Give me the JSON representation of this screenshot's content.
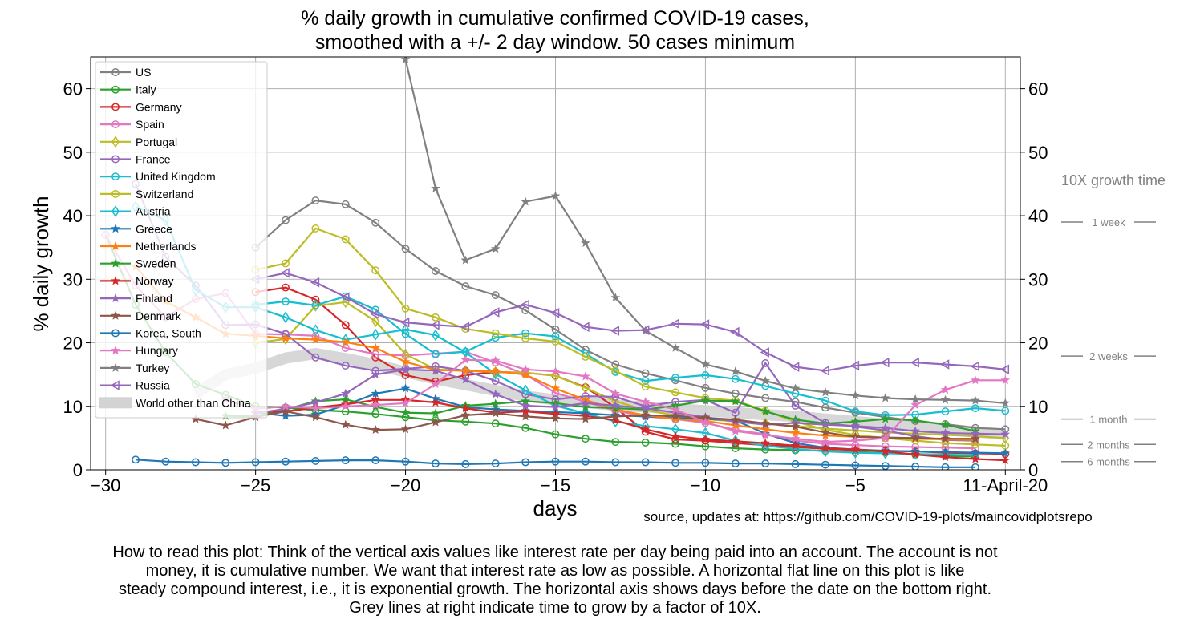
{
  "chart_data": {
    "type": "line",
    "title": "% daily growth in cumulative confirmed COVID-19 cases,",
    "subtitle": "smoothed with a +/- 2 day window. 50 cases minimum",
    "xlabel": "days",
    "ylabel": "% daily growth",
    "xlim": [
      -30.5,
      0.5
    ],
    "ylim": [
      0,
      65
    ],
    "x_ticks": [
      -30,
      -25,
      -20,
      -15,
      -10,
      -5,
      0
    ],
    "x_tick_labels": [
      "−30",
      "−25",
      "−20",
      "−15",
      "−10",
      "−5",
      "11-April-20"
    ],
    "y_ticks": [
      0,
      10,
      20,
      30,
      40,
      50,
      60
    ],
    "y_tick_labels": [
      "0",
      "10",
      "20",
      "30",
      "40",
      "50",
      "60"
    ],
    "grid": true,
    "legend_position": "top-left",
    "series": [
      {
        "name": "US",
        "color": "#808080",
        "marker": "circle",
        "start": -25,
        "values": [
          35,
          39.3,
          42.4,
          41.8,
          38.9,
          34.8,
          31.3,
          28.9,
          27.5,
          25.1,
          22.1,
          18.9,
          16.6,
          15.2,
          14.1,
          12.9,
          12.0,
          11.3,
          10.7,
          9.8,
          9.0,
          8.3,
          7.7,
          7.2,
          6.6,
          6.4
        ]
      },
      {
        "name": "Italy",
        "color": "#2ca02c",
        "marker": "circle",
        "start": -30,
        "values": [
          37,
          26,
          18.5,
          13.5,
          11.8,
          10.0,
          9.8,
          9.4,
          9.2,
          8.8,
          8.3,
          7.8,
          7.6,
          7.3,
          6.6,
          5.6,
          4.9,
          4.4,
          4.3,
          4.1,
          3.7,
          3.4,
          3.2,
          3.1,
          3.0,
          2.8,
          2.7,
          2.4,
          2.2,
          2.1
        ]
      },
      {
        "name": "Germany",
        "color": "#d62728",
        "marker": "circle",
        "start": -25,
        "values": [
          28.0,
          28.7,
          26.8,
          22.8,
          17.7,
          14.9,
          13.9,
          14.9,
          15.4,
          15.3,
          14.8,
          13.0,
          9.8,
          6.0,
          4.8,
          4.6,
          4.2,
          3.9,
          3.6,
          3.3,
          3.1,
          3.0,
          2.9,
          2.7,
          2.6,
          2.5
        ]
      },
      {
        "name": "Spain",
        "color": "#e377c2",
        "marker": "circle",
        "start": -30,
        "values": [
          37,
          29,
          24.0,
          26.9,
          27.8,
          21.4,
          21.3,
          21.1,
          19.2,
          18.2,
          18.0,
          18.3,
          18.6,
          16.9,
          15.0,
          12.1,
          10.7,
          9.3,
          8.4,
          8.0,
          7.4,
          6.3,
          5.6,
          4.6,
          4.1,
          3.9,
          3.7,
          3.6,
          3.5,
          3.4
        ]
      },
      {
        "name": "Portugal",
        "color": "#bcbd22",
        "marker": "diamond",
        "start": -25,
        "values": [
          20.0,
          20.6,
          25.8,
          26.4,
          23.4,
          18.2,
          15.8,
          15.6,
          15.4,
          15.3,
          14.8,
          12.9,
          10.8,
          9.4,
          8.6,
          8.0,
          7.6,
          7.3,
          6.9,
          6.5,
          6.2,
          5.9,
          5.7,
          5.5,
          5.3,
          5.0
        ]
      },
      {
        "name": "France",
        "color": "#9467bd",
        "marker": "circle",
        "start": -29,
        "values": [
          45,
          33.5,
          29.0,
          22.8,
          22.9,
          21.4,
          17.7,
          16.4,
          15.6,
          15.9,
          16.3,
          15.6,
          14.0,
          11.9,
          11.1,
          11.6,
          11.5,
          10.0,
          10.7,
          11.0,
          9.0,
          16.8,
          10.1,
          7.4,
          6.8,
          6.2,
          5.3,
          4.7,
          4.6
        ]
      },
      {
        "name": "United Kingdom",
        "color": "#17becf",
        "marker": "circle",
        "start": -25,
        "values": [
          26.0,
          26.5,
          25.9,
          27.3,
          25.2,
          21.4,
          18.2,
          18.6,
          20.8,
          21.5,
          21.0,
          18.3,
          15.4,
          14.0,
          14.5,
          14.9,
          14.3,
          13.2,
          12.0,
          10.9,
          9.2,
          8.6,
          8.7,
          9.2,
          9.7,
          9.3
        ]
      },
      {
        "name": "Switzerland",
        "color": "#bcbd22",
        "marker": "circle",
        "start": -25,
        "values": [
          31.5,
          32.5,
          38.0,
          36.3,
          31.4,
          25.4,
          24.0,
          22.2,
          21.5,
          20.7,
          20.2,
          17.8,
          15.6,
          13.1,
          12.2,
          11.3,
          10.9,
          9.3,
          7.6,
          6.3,
          5.5,
          5.0,
          4.6,
          4.2,
          4.0,
          3.8
        ]
      },
      {
        "name": "Austria",
        "color": "#17becf",
        "marker": "diamond",
        "start": -29,
        "values": [
          41.4,
          39.3,
          28.3,
          25.6,
          25.6,
          24.0,
          22.0,
          20.5,
          21.3,
          22.1,
          21.2,
          18.5,
          15.1,
          12.5,
          10.1,
          8.9,
          7.6,
          6.9,
          6.4,
          5.8,
          4.6,
          3.8,
          3.3,
          2.9,
          2.7,
          2.6,
          2.5,
          2.4,
          2.3
        ]
      },
      {
        "name": "Greece",
        "color": "#1f77b4",
        "marker": "star",
        "start": -25,
        "values": [
          9.0,
          8.5,
          8.7,
          10.2,
          12.0,
          12.8,
          11.2,
          9.9,
          9.5,
          9.3,
          9.1,
          8.9,
          8.6,
          8.4,
          8.2,
          8.0,
          7.8,
          5.7,
          4.2,
          3.5,
          3.2,
          3.0,
          2.9,
          2.8,
          2.7,
          2.6
        ]
      },
      {
        "name": "Netherlands",
        "color": "#ff7f0e",
        "marker": "star",
        "start": -29,
        "values": [
          32.0,
          26.5,
          24.0,
          21.4,
          21.1,
          20.7,
          20.5,
          20.1,
          19.2,
          17.0,
          15.7,
          15.6,
          15.5,
          15.0,
          12.8,
          11.0,
          9.5,
          8.6,
          8.0,
          7.7,
          7.0,
          6.4,
          5.8,
          5.4,
          5.2,
          5.0,
          4.9,
          4.8,
          4.7
        ]
      },
      {
        "name": "Sweden",
        "color": "#2ca02c",
        "marker": "star",
        "start": -26,
        "values": [
          8.5,
          8.4,
          9.5,
          10.8,
          11.1,
          9.9,
          9.0,
          8.9,
          10.1,
          10.4,
          10.8,
          10.5,
          9.9,
          9.7,
          9.5,
          10.1,
          10.9,
          10.8,
          9.2,
          7.9,
          7.3,
          7.6,
          8.0,
          7.8,
          7.1,
          6.1
        ]
      },
      {
        "name": "Norway",
        "color": "#d62728",
        "marker": "star",
        "start": -25,
        "values": [
          9.1,
          9.2,
          9.8,
          10.3,
          11.0,
          11.0,
          10.6,
          9.7,
          9.0,
          9.2,
          8.8,
          8.5,
          7.8,
          6.4,
          5.3,
          4.8,
          4.5,
          4.2,
          3.8,
          3.4,
          3.2,
          2.9,
          2.4,
          2.0,
          1.7,
          1.5
        ]
      },
      {
        "name": "Finland",
        "color": "#9467bd",
        "marker": "star",
        "start": -25,
        "values": [
          8.9,
          9.6,
          10.6,
          12.0,
          15.0,
          15.8,
          15.6,
          14.2,
          11.9,
          10.1,
          9.9,
          10.5,
          10.1,
          9.7,
          9.0,
          8.3,
          7.6,
          7.1,
          7.4,
          7.1,
          6.9,
          6.6,
          6.1,
          5.8,
          5.7,
          5.6
        ]
      },
      {
        "name": "Denmark",
        "color": "#8c564b",
        "marker": "star",
        "start": -27,
        "values": [
          8.0,
          7.0,
          8.3,
          9.2,
          8.3,
          7.1,
          6.3,
          6.4,
          7.5,
          8.6,
          8.9,
          8.4,
          8.1,
          8.0,
          8.4,
          8.6,
          8.5,
          8.2,
          7.9,
          7.3,
          6.8,
          5.9,
          5.2,
          5.1,
          5.0,
          4.9,
          4.9
        ]
      },
      {
        "name": "Korea, South",
        "color": "#1f77b4",
        "marker": "circle",
        "start": -29,
        "values": [
          1.6,
          1.3,
          1.2,
          1.1,
          1.2,
          1.3,
          1.4,
          1.5,
          1.5,
          1.3,
          1.0,
          0.9,
          1.0,
          1.2,
          1.3,
          1.3,
          1.2,
          1.2,
          1.1,
          1.1,
          1.0,
          1.0,
          0.9,
          0.8,
          0.7,
          0.6,
          0.5,
          0.4,
          0.4
        ]
      },
      {
        "name": "Hungary",
        "color": "#e377c2",
        "marker": "star",
        "start": -26,
        "values": [
          11.0,
          9.6,
          10.0,
          9.7,
          10.0,
          10.2,
          10.5,
          13.5,
          17.3,
          17.2,
          15.8,
          15.5,
          14.7,
          12.0,
          10.7,
          9.5,
          7.5,
          6.1,
          5.5,
          4.9,
          4.4,
          4.6,
          5.0,
          10.2,
          12.6,
          14.1,
          14.1
        ]
      },
      {
        "name": "Turkey",
        "color": "#808080",
        "marker": "star",
        "start": -20,
        "values": [
          64.6,
          44.3,
          33.0,
          34.8,
          42.2,
          43.1,
          35.7,
          27.1,
          21.9,
          19.2,
          16.6,
          15.5,
          14.0,
          12.8,
          12.2,
          11.7,
          11.3,
          11.1,
          11.0,
          10.9,
          10.5
        ]
      },
      {
        "name": "Russia",
        "color": "#9467bd",
        "marker": "triangle-left",
        "start": -25,
        "values": [
          30.0,
          31.0,
          29.5,
          27.2,
          24.5,
          23.2,
          22.8,
          22.5,
          24.8,
          26.0,
          24.7,
          22.5,
          21.9,
          22.0,
          23.0,
          22.9,
          21.7,
          18.5,
          16.2,
          15.6,
          16.4,
          16.9,
          16.9,
          16.6,
          16.3,
          15.8
        ]
      },
      {
        "name": "World other than China",
        "color": "#d3d3d3",
        "marker": "band",
        "start": -27,
        "values": [
          12.0,
          15.0,
          16.0,
          17.6,
          18.3,
          17.5,
          16.6,
          15.4,
          14.3,
          13.4,
          12.5,
          11.6,
          11.0,
          10.6,
          10.2,
          9.9,
          9.6,
          9.3,
          9.0,
          8.7,
          8.4,
          8.0,
          7.6,
          7.2,
          6.8,
          6.4,
          6.0,
          5.6
        ]
      }
    ],
    "right_guide_title": "10X growth time",
    "right_guides": [
      {
        "label": "1 week",
        "value": 39.0
      },
      {
        "label": "2 weeks",
        "value": 17.9
      },
      {
        "label": "1 month",
        "value": 8.0
      },
      {
        "label": "2 months",
        "value": 4.0
      },
      {
        "label": "6 months",
        "value": 1.3
      }
    ]
  },
  "source_text": "source, updates at: https://github.com/COVID-19-plots/maincovidplotsrepo",
  "note_lines": [
    "How to read this plot: Think of the vertical axis values like interest rate per day being paid into an account. The account is not",
    "money, it is cumulative number. We want that interest rate as low as possible. A horizontal flat line on this plot is like",
    "steady compound interest, i.e., it is exponential growth. The horizontal axis shows days before the date on the bottom right.",
    "Grey lines at right indicate time to grow by a factor of 10X."
  ]
}
